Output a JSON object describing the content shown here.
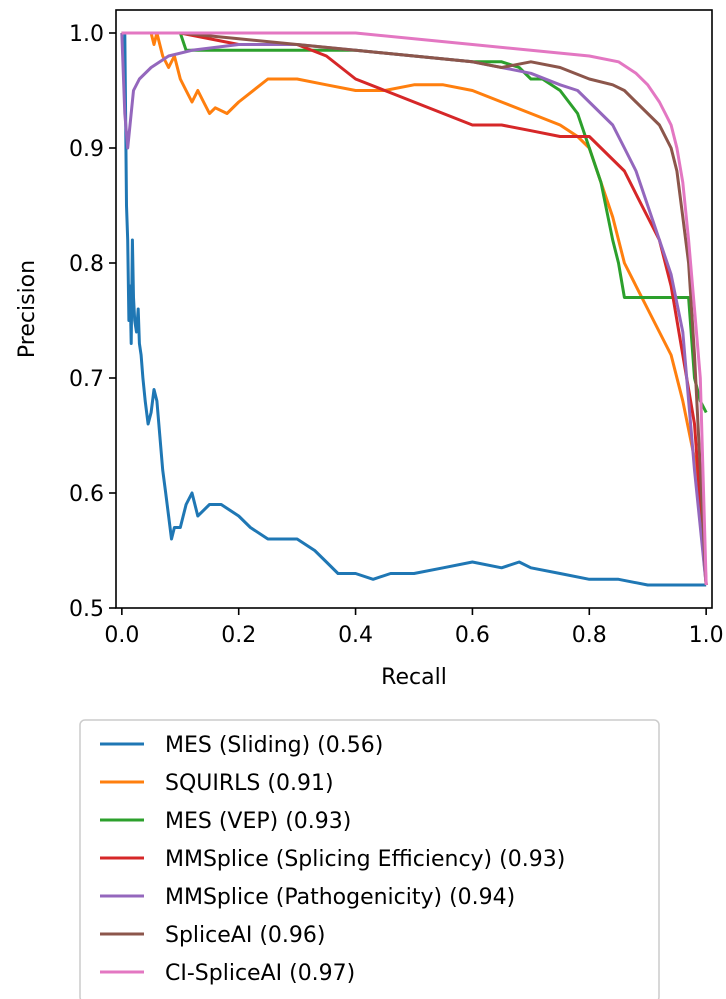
{
  "chart_data": {
    "type": "line",
    "title": "",
    "xlabel": "Recall",
    "ylabel": "Precision",
    "xlim": [
      -0.01,
      1.01
    ],
    "ylim": [
      0.5,
      1.02
    ],
    "xticks": [
      "0.0",
      "0.2",
      "0.4",
      "0.6",
      "0.8",
      "1.0"
    ],
    "yticks": [
      "0.5",
      "0.6",
      "0.7",
      "0.8",
      "0.9",
      "1.0"
    ],
    "grid": false,
    "legend_position": "below",
    "series": [
      {
        "name": "MES (Sliding) (0.56)",
        "color": "#1f77b4",
        "x": [
          0.005,
          0.008,
          0.01,
          0.012,
          0.014,
          0.016,
          0.018,
          0.02,
          0.022,
          0.025,
          0.028,
          0.03,
          0.033,
          0.036,
          0.04,
          0.045,
          0.05,
          0.055,
          0.06,
          0.065,
          0.07,
          0.075,
          0.08,
          0.085,
          0.09,
          0.1,
          0.11,
          0.12,
          0.13,
          0.15,
          0.17,
          0.2,
          0.22,
          0.25,
          0.27,
          0.3,
          0.33,
          0.35,
          0.37,
          0.4,
          0.43,
          0.46,
          0.5,
          0.55,
          0.6,
          0.65,
          0.68,
          0.7,
          0.75,
          0.8,
          0.85,
          0.9,
          0.95,
          1.0
        ],
        "y": [
          1.0,
          0.85,
          0.82,
          0.75,
          0.78,
          0.73,
          0.82,
          0.77,
          0.75,
          0.74,
          0.76,
          0.73,
          0.72,
          0.7,
          0.68,
          0.66,
          0.67,
          0.69,
          0.68,
          0.65,
          0.62,
          0.6,
          0.58,
          0.56,
          0.57,
          0.57,
          0.59,
          0.6,
          0.58,
          0.59,
          0.59,
          0.58,
          0.57,
          0.56,
          0.56,
          0.56,
          0.55,
          0.54,
          0.53,
          0.53,
          0.525,
          0.53,
          0.53,
          0.535,
          0.54,
          0.535,
          0.54,
          0.535,
          0.53,
          0.525,
          0.525,
          0.52,
          0.52,
          0.52
        ]
      },
      {
        "name": "SQUIRLS (0.91)",
        "color": "#ff7f0e",
        "x": [
          0.0,
          0.05,
          0.055,
          0.06,
          0.07,
          0.08,
          0.09,
          0.1,
          0.11,
          0.12,
          0.13,
          0.14,
          0.15,
          0.16,
          0.18,
          0.2,
          0.25,
          0.3,
          0.35,
          0.4,
          0.45,
          0.5,
          0.55,
          0.6,
          0.65,
          0.7,
          0.75,
          0.78,
          0.8,
          0.82,
          0.84,
          0.86,
          0.88,
          0.9,
          0.92,
          0.94,
          0.96,
          0.98,
          1.0
        ],
        "y": [
          1.0,
          1.0,
          0.99,
          1.0,
          0.98,
          0.97,
          0.98,
          0.96,
          0.95,
          0.94,
          0.95,
          0.94,
          0.93,
          0.935,
          0.93,
          0.94,
          0.96,
          0.96,
          0.955,
          0.95,
          0.95,
          0.955,
          0.955,
          0.95,
          0.94,
          0.93,
          0.92,
          0.91,
          0.9,
          0.87,
          0.84,
          0.8,
          0.78,
          0.76,
          0.74,
          0.72,
          0.68,
          0.63,
          0.52
        ]
      },
      {
        "name": "MES (VEP) (0.93)",
        "color": "#2ca02c",
        "x": [
          0.0,
          0.1,
          0.11,
          0.2,
          0.3,
          0.4,
          0.5,
          0.6,
          0.65,
          0.68,
          0.7,
          0.72,
          0.75,
          0.78,
          0.8,
          0.82,
          0.84,
          0.85,
          0.86,
          0.9,
          0.95,
          0.97,
          0.98,
          0.99,
          1.0
        ],
        "y": [
          1.0,
          1.0,
          0.985,
          0.985,
          0.985,
          0.985,
          0.98,
          0.975,
          0.975,
          0.97,
          0.96,
          0.96,
          0.95,
          0.93,
          0.9,
          0.87,
          0.82,
          0.8,
          0.77,
          0.77,
          0.77,
          0.77,
          0.7,
          0.68,
          0.67
        ]
      },
      {
        "name": "MMSplice (Splicing Efficiency) (0.93)",
        "color": "#d62728",
        "x": [
          0.0,
          0.1,
          0.2,
          0.3,
          0.35,
          0.4,
          0.45,
          0.5,
          0.55,
          0.6,
          0.65,
          0.7,
          0.75,
          0.8,
          0.82,
          0.84,
          0.86,
          0.88,
          0.9,
          0.92,
          0.94,
          0.96,
          0.98,
          1.0
        ],
        "y": [
          1.0,
          1.0,
          0.99,
          0.99,
          0.98,
          0.96,
          0.95,
          0.94,
          0.93,
          0.92,
          0.92,
          0.915,
          0.91,
          0.91,
          0.9,
          0.89,
          0.88,
          0.86,
          0.84,
          0.82,
          0.78,
          0.72,
          0.66,
          0.52
        ]
      },
      {
        "name": "MMSplice (Pathogenicity) (0.94)",
        "color": "#9467bd",
        "x": [
          0.0,
          0.005,
          0.01,
          0.02,
          0.03,
          0.05,
          0.08,
          0.12,
          0.2,
          0.3,
          0.4,
          0.5,
          0.6,
          0.65,
          0.7,
          0.75,
          0.78,
          0.8,
          0.82,
          0.84,
          0.86,
          0.88,
          0.9,
          0.92,
          0.94,
          0.96,
          0.98,
          1.0
        ],
        "y": [
          1.0,
          0.93,
          0.9,
          0.95,
          0.96,
          0.97,
          0.98,
          0.985,
          0.99,
          0.99,
          0.985,
          0.98,
          0.975,
          0.97,
          0.965,
          0.955,
          0.95,
          0.94,
          0.93,
          0.92,
          0.9,
          0.88,
          0.85,
          0.82,
          0.79,
          0.74,
          0.62,
          0.52
        ]
      },
      {
        "name": "SpliceAI (0.96)",
        "color": "#8c564b",
        "x": [
          0.0,
          0.1,
          0.2,
          0.3,
          0.4,
          0.5,
          0.6,
          0.65,
          0.7,
          0.75,
          0.8,
          0.84,
          0.86,
          0.88,
          0.9,
          0.92,
          0.94,
          0.95,
          0.96,
          0.97,
          0.98,
          0.99,
          1.0
        ],
        "y": [
          1.0,
          1.0,
          0.995,
          0.99,
          0.985,
          0.98,
          0.975,
          0.97,
          0.975,
          0.97,
          0.96,
          0.955,
          0.95,
          0.94,
          0.93,
          0.92,
          0.9,
          0.88,
          0.84,
          0.8,
          0.72,
          0.62,
          0.52
        ]
      },
      {
        "name": "CI-SpliceAI (0.97)",
        "color": "#e377c2",
        "x": [
          0.0,
          0.4,
          0.5,
          0.6,
          0.7,
          0.8,
          0.85,
          0.88,
          0.9,
          0.92,
          0.93,
          0.94,
          0.95,
          0.96,
          0.97,
          0.98,
          0.99,
          1.0
        ],
        "y": [
          1.0,
          1.0,
          0.995,
          0.99,
          0.985,
          0.98,
          0.975,
          0.965,
          0.955,
          0.94,
          0.93,
          0.92,
          0.9,
          0.87,
          0.82,
          0.76,
          0.7,
          0.52
        ]
      }
    ]
  }
}
